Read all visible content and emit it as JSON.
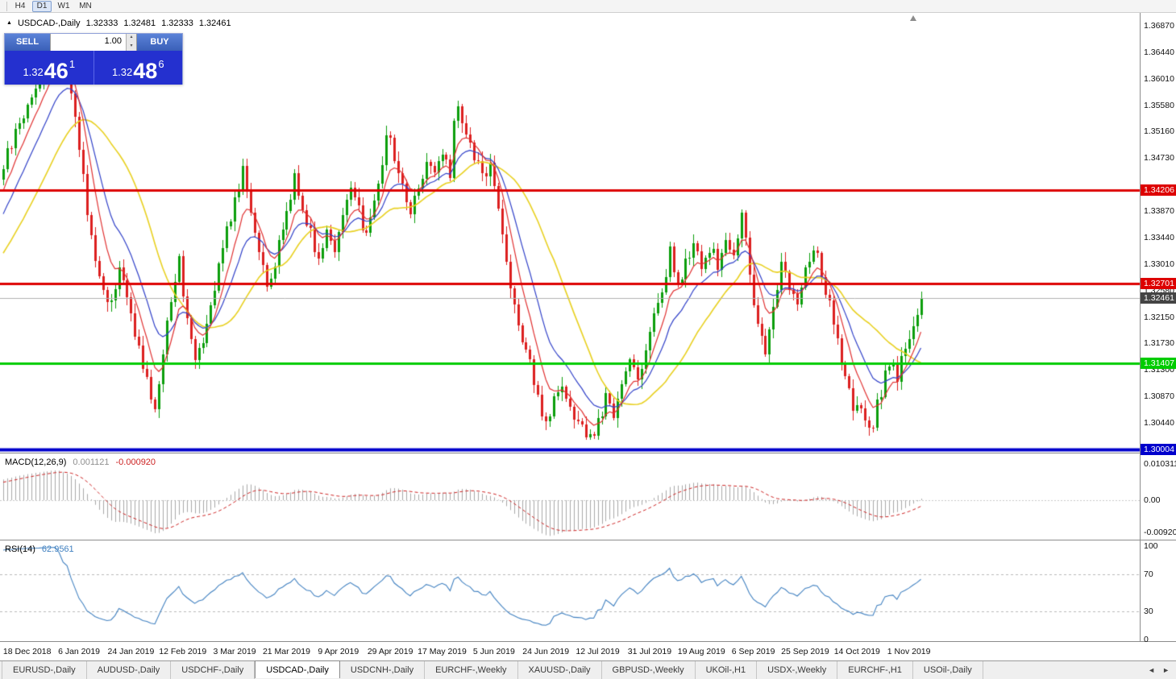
{
  "toolbar": {
    "timeframes": [
      {
        "label": "H4",
        "active": false
      },
      {
        "label": "D1",
        "active": true
      },
      {
        "label": "W1",
        "active": false
      },
      {
        "label": "MN",
        "active": false
      }
    ]
  },
  "chart": {
    "marker": "▲",
    "symbol": "USDCAD-,Daily",
    "open": "1.32333",
    "high": "1.32481",
    "low": "1.32333",
    "close": "1.32461"
  },
  "quote_panel": {
    "sell_label": "SELL",
    "buy_label": "BUY",
    "volume_value": "1.00",
    "spinner_up": "▴",
    "spinner_down": "▾",
    "sell_price": {
      "prefix": "1.32",
      "digits": "46",
      "sup": "1"
    },
    "buy_price": {
      "prefix": "1.32",
      "digits": "48",
      "sup": "6"
    },
    "button_color": "#3a5fb8",
    "price_bg": "#2430cf"
  },
  "chart_data": {
    "type": "candlestick",
    "symbol": "USDCAD-",
    "timeframe": "Daily",
    "colors": {
      "up": "#0b9e0b",
      "down": "#dc1f1f",
      "background": "#ffffff"
    },
    "y_axis": {
      "decimals": 5,
      "ticks": [
        1.3687,
        1.3644,
        1.3601,
        1.3558,
        1.3516,
        1.3473,
        1.3387,
        1.3344,
        1.3301,
        1.3258,
        1.3215,
        1.3173,
        1.313,
        1.3087,
        1.3044
      ]
    },
    "levels": [
      {
        "kind": "resistance",
        "price": 1.34206,
        "label": "1.34206",
        "color": "#dd0000",
        "width": 3,
        "badge": true
      },
      {
        "kind": "resistance",
        "price": 1.32701,
        "label": "1.32701",
        "color": "#dd0000",
        "width": 3,
        "badge": true
      },
      {
        "kind": "current-price",
        "price": 1.32461,
        "label": "1.32461",
        "color": "#444444",
        "line_color": "#b0b0b0",
        "width": 1,
        "badge": true
      },
      {
        "kind": "support",
        "price": 1.31407,
        "label": "1.31407",
        "color": "#00cc00",
        "width": 3,
        "badge": true
      },
      {
        "kind": "support",
        "price": 1.30004,
        "label": "1.30004",
        "color": "#0000cc",
        "width": 4,
        "badge": true
      }
    ],
    "x_axis": {
      "first_label_bar": 6,
      "label_step": 13,
      "dates": [
        "18 Dec 2018",
        "6 Jan 2019",
        "24 Jan 2019",
        "12 Feb 2019",
        "3 Mar 2019",
        "21 Mar 2019",
        "9 Apr 2019",
        "29 Apr 2019",
        "17 May 2019",
        "5 Jun 2019",
        "24 Jun 2019",
        "12 Jul 2019",
        "31 Jul 2019",
        "19 Aug 2019",
        "6 Sep 2019",
        "25 Sep 2019",
        "14 Oct 2019",
        "1 Nov 2019"
      ]
    },
    "price": {
      "first_bar": -30,
      "last_bar": 230,
      "bar_width": 4.95,
      "anchors": [
        [
          -30,
          1.316
        ],
        [
          -20,
          1.3245
        ],
        [
          -10,
          1.3335
        ],
        [
          0,
          1.346
        ],
        [
          4,
          1.353
        ],
        [
          8,
          1.3585
        ],
        [
          13,
          1.366
        ],
        [
          16,
          1.3615
        ],
        [
          18,
          1.3545
        ],
        [
          20,
          1.3435
        ],
        [
          22,
          1.3345
        ],
        [
          24,
          1.3275
        ],
        [
          27,
          1.3235
        ],
        [
          29,
          1.329
        ],
        [
          31,
          1.3245
        ],
        [
          33,
          1.3195
        ],
        [
          35,
          1.3125
        ],
        [
          38,
          1.307
        ],
        [
          40,
          1.316
        ],
        [
          42,
          1.325
        ],
        [
          44,
          1.3305
        ],
        [
          46,
          1.3215
        ],
        [
          48,
          1.3155
        ],
        [
          50,
          1.3185
        ],
        [
          52,
          1.324
        ],
        [
          54,
          1.33
        ],
        [
          56,
          1.3355
        ],
        [
          58,
          1.3405
        ],
        [
          60,
          1.345
        ],
        [
          62,
          1.339
        ],
        [
          64,
          1.333
        ],
        [
          66,
          1.3255
        ],
        [
          68,
          1.33
        ],
        [
          70,
          1.336
        ],
        [
          73,
          1.3445
        ],
        [
          75,
          1.339
        ],
        [
          77,
          1.3355
        ],
        [
          79,
          1.331
        ],
        [
          81,
          1.3355
        ],
        [
          83,
          1.333
        ],
        [
          85,
          1.338
        ],
        [
          87,
          1.342
        ],
        [
          89,
          1.3385
        ],
        [
          91,
          1.335
        ],
        [
          93,
          1.34
        ],
        [
          95,
          1.347
        ],
        [
          96,
          1.352
        ],
        [
          98,
          1.347
        ],
        [
          100,
          1.343
        ],
        [
          102,
          1.3385
        ],
        [
          104,
          1.343
        ],
        [
          106,
          1.347
        ],
        [
          108,
          1.3445
        ],
        [
          110,
          1.3475
        ],
        [
          112,
          1.3445
        ],
        [
          113,
          1.353
        ],
        [
          114,
          1.3565
        ],
        [
          116,
          1.3505
        ],
        [
          118,
          1.3475
        ],
        [
          120,
          1.3445
        ],
        [
          122,
          1.346
        ],
        [
          124,
          1.339
        ],
        [
          126,
          1.3305
        ],
        [
          128,
          1.324
        ],
        [
          130,
          1.3165
        ],
        [
          132,
          1.314
        ],
        [
          134,
          1.3085
        ],
        [
          136,
          1.3045
        ],
        [
          138,
          1.3075
        ],
        [
          140,
          1.3095
        ],
        [
          142,
          1.306
        ],
        [
          145,
          1.303
        ],
        [
          147,
          1.3016
        ],
        [
          149,
          1.3045
        ],
        [
          151,
          1.3085
        ],
        [
          153,
          1.305
        ],
        [
          155,
          1.311
        ],
        [
          157,
          1.315
        ],
        [
          159,
          1.312
        ],
        [
          161,
          1.316
        ],
        [
          163,
          1.322
        ],
        [
          165,
          1.326
        ],
        [
          167,
          1.332
        ],
        [
          169,
          1.326
        ],
        [
          171,
          1.33
        ],
        [
          173,
          1.334
        ],
        [
          175,
          1.329
        ],
        [
          177,
          1.333
        ],
        [
          179,
          1.33
        ],
        [
          181,
          1.334
        ],
        [
          183,
          1.331
        ],
        [
          185,
          1.338
        ],
        [
          187,
          1.329
        ],
        [
          189,
          1.32
        ],
        [
          191,
          1.3155
        ],
        [
          193,
          1.3235
        ],
        [
          195,
          1.33
        ],
        [
          197,
          1.327
        ],
        [
          199,
          1.324
        ],
        [
          201,
          1.3295
        ],
        [
          203,
          1.333
        ],
        [
          205,
          1.3285
        ],
        [
          207,
          1.323
        ],
        [
          209,
          1.317
        ],
        [
          211,
          1.311
        ],
        [
          213,
          1.307
        ],
        [
          215,
          1.3055
        ],
        [
          218,
          1.3045
        ],
        [
          220,
          1.3095
        ],
        [
          222,
          1.3145
        ],
        [
          224,
          1.312
        ],
        [
          226,
          1.3165
        ],
        [
          228,
          1.3205
        ],
        [
          230,
          1.3246
        ]
      ]
    },
    "moving_averages": [
      {
        "type": "sma",
        "period": 26,
        "color": "#e8d020",
        "width": 1.6
      },
      {
        "type": "ema",
        "period": 14,
        "color": "#3040c8",
        "width": 1.2
      },
      {
        "type": "ema",
        "period": 7,
        "color": "#e03030",
        "width": 1.2
      }
    ],
    "indicators": {
      "macd": {
        "label": "MACD(12,26,9)",
        "fast": 12,
        "slow": 26,
        "signal": 9,
        "value_main": "0.001121",
        "value_signal": "-0.000920",
        "axis_values": [
          0.010311,
          0,
          -0.009201
        ],
        "axis_labels": [
          "0.010311",
          "0.00",
          "-0.009201"
        ],
        "histogram_color": "#a8a8a8",
        "signal_color": "#cc2222"
      },
      "rsi": {
        "label": "RSI(14)",
        "period": 14,
        "value": "62.9561",
        "levels": [
          100,
          70,
          30,
          0
        ],
        "line_color": "#4080c0",
        "level_line_color": "#b8b8b8"
      }
    }
  },
  "tabs": {
    "scroll_left": "◄",
    "scroll_right": "►",
    "items": [
      {
        "label": "EURUSD-,Daily",
        "active": false
      },
      {
        "label": "AUDUSD-,Daily",
        "active": false
      },
      {
        "label": "USDCHF-,Daily",
        "active": false
      },
      {
        "label": "USDCAD-,Daily",
        "active": true
      },
      {
        "label": "USDCNH-,Daily",
        "active": false
      },
      {
        "label": "EURCHF-,Weekly",
        "active": false
      },
      {
        "label": "XAUUSD-,Daily",
        "active": false
      },
      {
        "label": "GBPUSD-,Weekly",
        "active": false
      },
      {
        "label": "UKOil-,H1",
        "active": false
      },
      {
        "label": "USDX-,Weekly",
        "active": false
      },
      {
        "label": "EURCHF-,H1",
        "active": false
      },
      {
        "label": "USOil-,Daily",
        "active": false
      }
    ]
  }
}
